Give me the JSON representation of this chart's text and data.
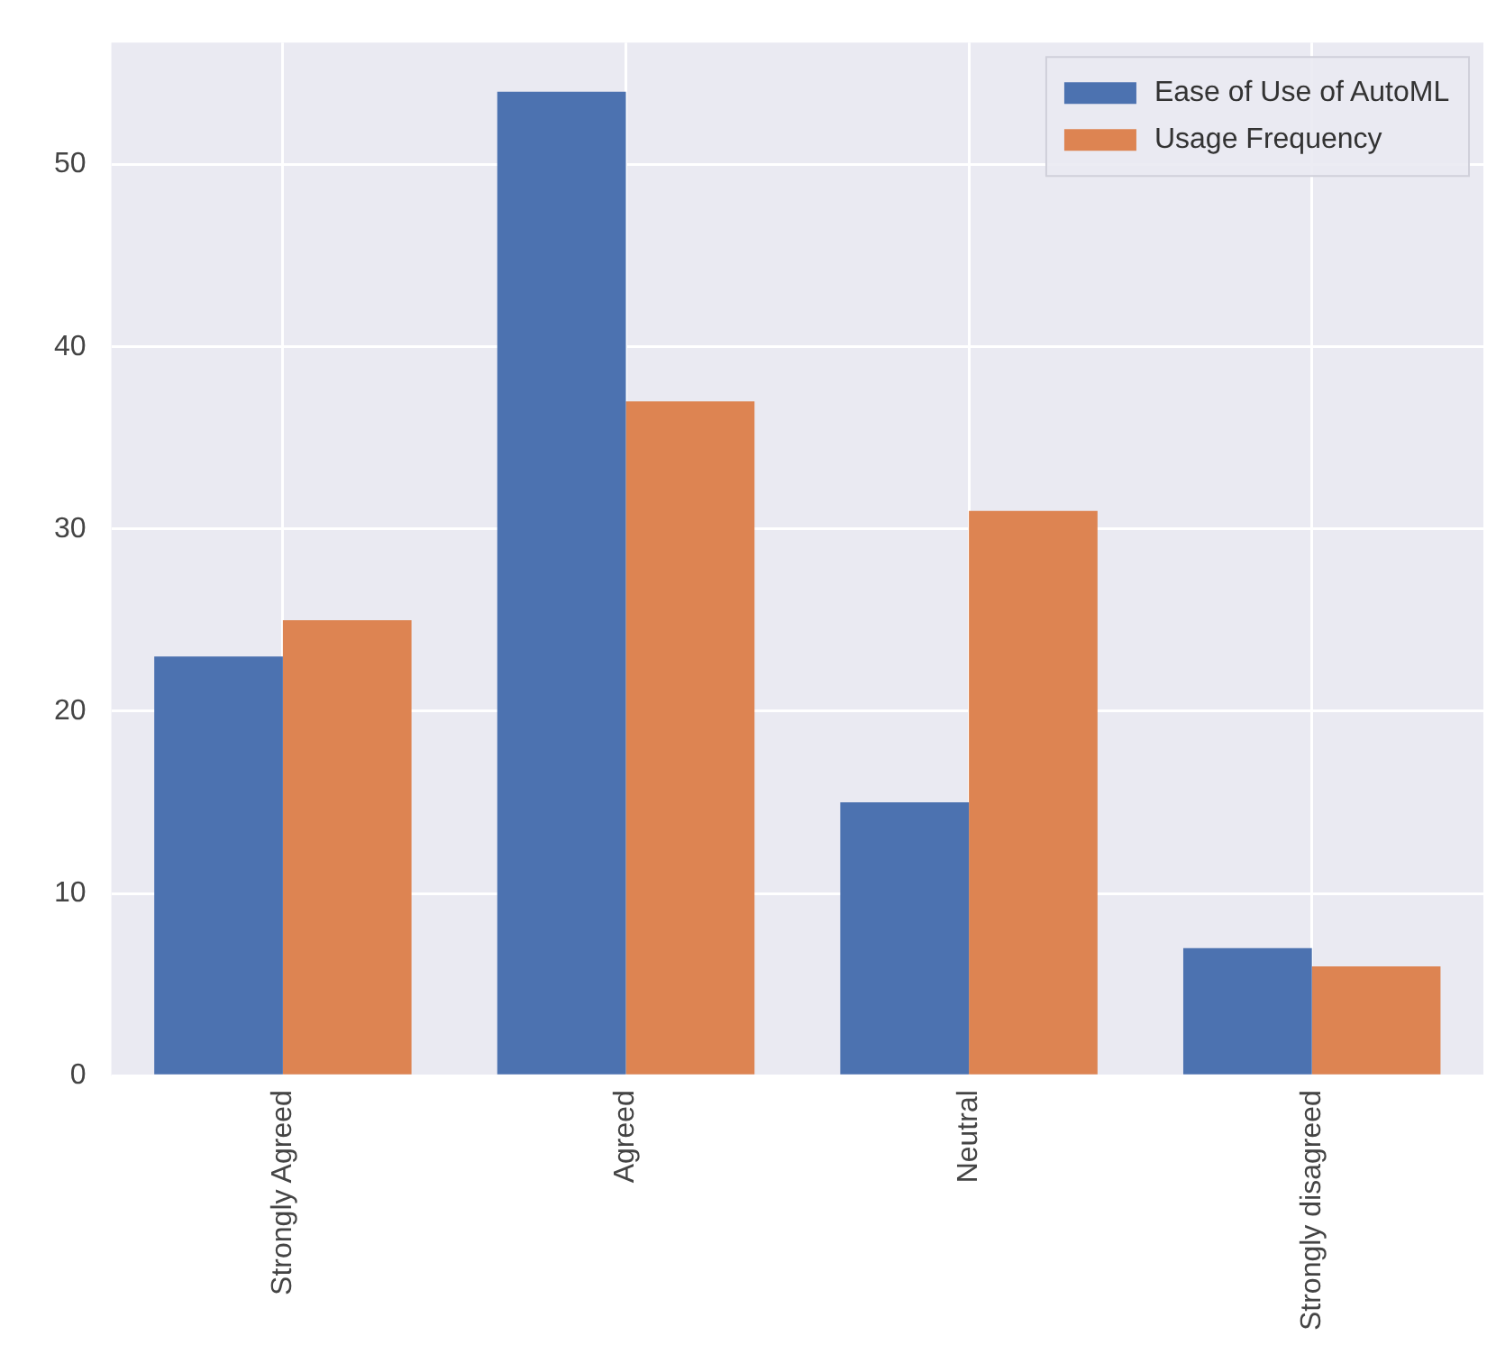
{
  "chart_data": {
    "type": "bar",
    "categories": [
      "Strongly Agreed",
      "Agreed",
      "Neutral",
      "Strongly disagreed"
    ],
    "series": [
      {
        "name": "Ease of Use of AutoML",
        "color": "#4c72b0",
        "values": [
          23,
          54,
          15,
          7
        ]
      },
      {
        "name": "Usage Frequency",
        "color": "#dd8452",
        "values": [
          25,
          37,
          31,
          6
        ]
      }
    ],
    "ylim": [
      0,
      56.7
    ],
    "yticks": [
      0,
      10,
      20,
      30,
      40,
      50
    ],
    "grid": true,
    "legend": "top right"
  }
}
